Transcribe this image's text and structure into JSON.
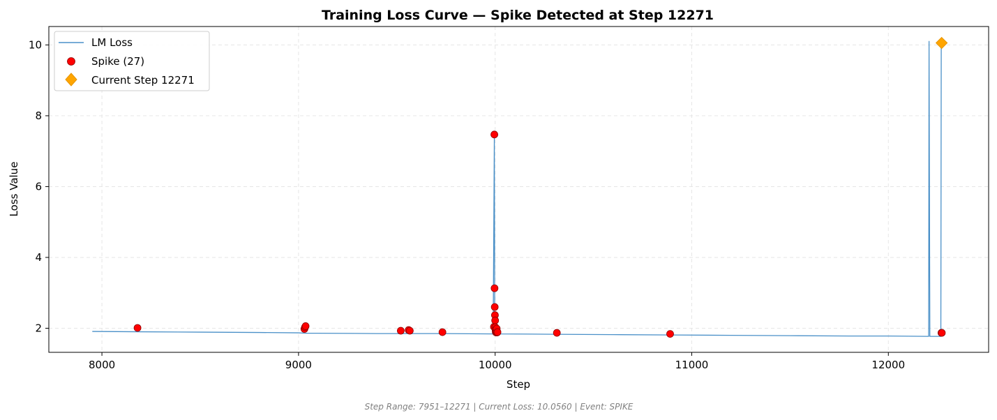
{
  "chart_data": {
    "type": "line",
    "title": "Training Loss Curve — Spike Detected at Step 12271",
    "xlabel": "Step",
    "ylabel": "Loss Value",
    "xlim": [
      7730,
      12510
    ],
    "ylim": [
      1.32,
      10.52
    ],
    "xticks": [
      8000,
      9000,
      10000,
      11000,
      12000
    ],
    "yticks": [
      2,
      4,
      6,
      8,
      10
    ],
    "xtick_labels": [
      "8000",
      "9000",
      "10000",
      "11000",
      "12000"
    ],
    "ytick_labels": [
      "2",
      "4",
      "6",
      "8",
      "10"
    ],
    "grid": true,
    "legend_position": "top-left",
    "footer": "Step Range: 7951–12271 | Current Loss: 10.0560 | Event: SPIKE",
    "colors": {
      "line": "#4a90c8",
      "spike": "#ff0000",
      "current": "#ffa500"
    },
    "series": [
      {
        "name": "LM Loss",
        "kind": "line",
        "x": [
          7951,
          8200,
          8500,
          8800,
          9000,
          9035,
          9100,
          9400,
          9700,
          9990,
          9996,
          9998,
          10000,
          10003,
          10020,
          10300,
          10600,
          10900,
          11200,
          11500,
          11800,
          12000,
          12200,
          12205,
          12207,
          12211,
          12214,
          12250,
          12267,
          12269,
          12271
        ],
        "y": [
          1.91,
          1.9,
          1.89,
          1.88,
          1.87,
          1.86,
          1.86,
          1.85,
          1.85,
          1.84,
          7.47,
          1.84,
          1.84,
          1.85,
          1.84,
          1.83,
          1.82,
          1.81,
          1.8,
          1.79,
          1.78,
          1.78,
          1.77,
          1.77,
          10.1,
          1.77,
          1.77,
          1.77,
          1.77,
          10.0,
          10.056
        ]
      },
      {
        "name": "Spike (27)",
        "kind": "scatter",
        "x": [
          8181,
          9030,
          9033,
          9036,
          9520,
          9560,
          9566,
          9732,
          9994,
          9996,
          9997,
          9998,
          9999,
          10000,
          10001,
          10002,
          10003,
          10004,
          10005,
          10006,
          10008,
          10010,
          10012,
          10314,
          10890,
          12270,
          12272
        ],
        "y": [
          2.01,
          1.98,
          2.03,
          2.06,
          1.93,
          1.95,
          1.93,
          1.89,
          2.04,
          7.47,
          3.13,
          2.6,
          2.37,
          2.22,
          2.03,
          1.96,
          1.9,
          1.89,
          1.88,
          1.9,
          1.99,
          1.88,
          1.89,
          1.87,
          1.84,
          1.87,
          1.87
        ]
      },
      {
        "name": "Current Step 12271",
        "kind": "marker",
        "x": [
          12271
        ],
        "y": [
          10.056
        ]
      }
    ]
  }
}
